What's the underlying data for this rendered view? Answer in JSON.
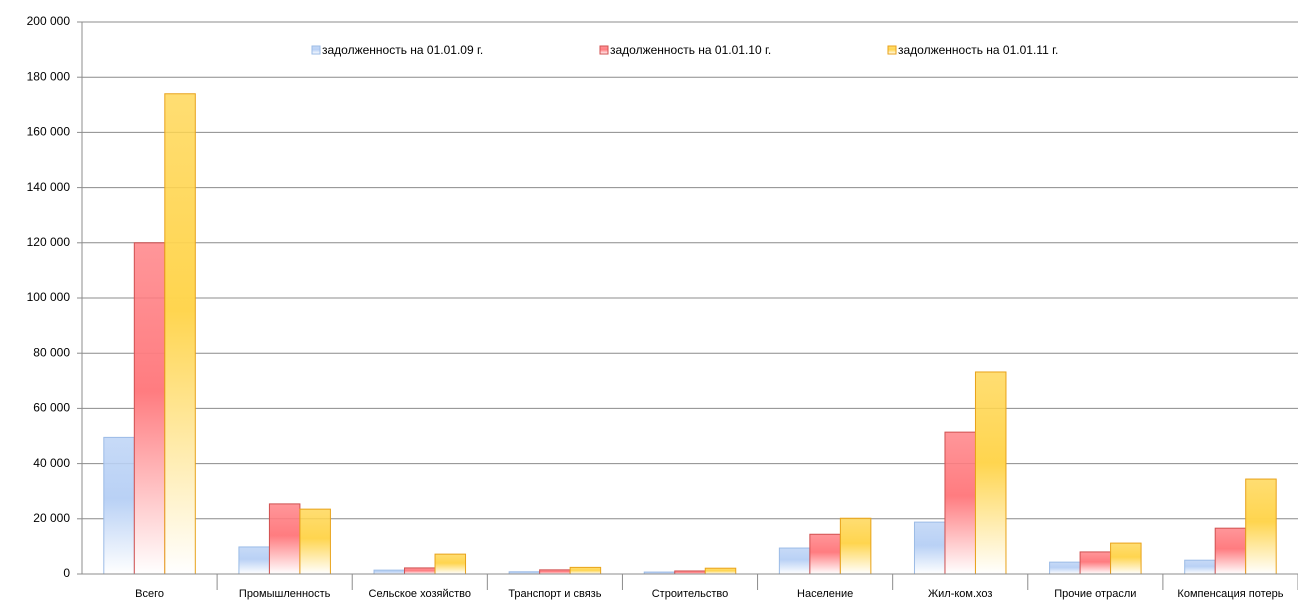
{
  "chart_data": {
    "type": "bar",
    "categories": [
      "Всего",
      "Промышленность",
      "Сельское хозяйство",
      "Транспорт и связь",
      "Строительство",
      "Население",
      "Жил-ком.хоз",
      "Прочие отрасли",
      "Компенсация потерь"
    ],
    "series": [
      {
        "name": "задолженность на 01.01.09 г.",
        "color": "#b9d1f5",
        "stroke": "#9bbbe6",
        "values": [
          49500,
          9800,
          1400,
          800,
          700,
          9400,
          18800,
          4300,
          5000
        ]
      },
      {
        "name": "задолженность на 01.01.10 г.",
        "color": "#ff7c80",
        "stroke": "#d05050",
        "values": [
          120000,
          25400,
          2200,
          1500,
          1100,
          14400,
          51400,
          8000,
          16600
        ]
      },
      {
        "name": "задолженность на 01.01.11 г.",
        "color": "#ffd54f",
        "stroke": "#e8a21a",
        "values": [
          174000,
          23500,
          7200,
          2400,
          2100,
          20200,
          73200,
          11200,
          34400
        ]
      }
    ],
    "ylim": [
      0,
      200000
    ],
    "yticks": [
      0,
      {
        "value": 20000,
        "label": "20 000"
      },
      {
        "value": 40000,
        "label": "40 000"
      },
      {
        "value": 60000,
        "label": "60 000"
      },
      {
        "value": 80000,
        "label": "80 000"
      },
      {
        "value": 100000,
        "label": "100 000"
      },
      {
        "value": 120000,
        "label": "120 000"
      },
      {
        "value": 140000,
        "label": "140 000"
      },
      {
        "value": 160000,
        "label": "160 000"
      },
      {
        "value": 180000,
        "label": "180 000"
      },
      {
        "value": 200000,
        "label": "200 000"
      }
    ],
    "grid": true
  }
}
